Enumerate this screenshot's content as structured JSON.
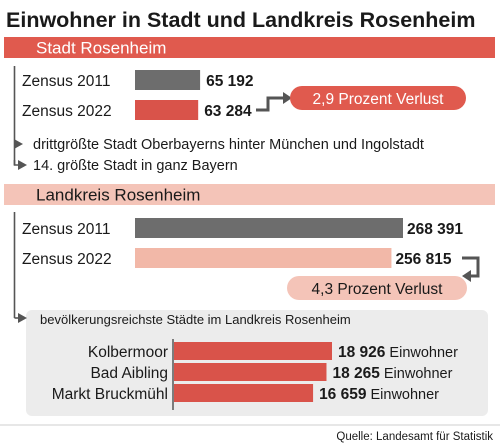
{
  "title": "Einwohner in Stadt und Landkreis Rosenheim",
  "source": "Quelle: Landesamt für Statistik",
  "colors": {
    "stadt_header": "#e05a4e",
    "landkreis_header": "#f4c4b8",
    "bar_2011": "#6d6d6d",
    "bar_2022_stadt": "#d9534a",
    "bar_2022_landkreis": "#f2b8a8",
    "bar_cities": "#d9534a",
    "arrow": "#555555",
    "box_bg": "#ececec"
  },
  "chart_data": [
    {
      "type": "bar",
      "section": "Stadt Rosenheim",
      "categories": [
        "Zensus 2011",
        "Zensus 2022"
      ],
      "values": [
        65192,
        63284
      ],
      "value_labels": [
        "65 192",
        "63 284"
      ],
      "annotation": "2,9 Prozent Verlust",
      "notes": [
        "drittgrößte Stadt Oberbayerns hinter München und Ingolstadt",
        "14. größte Stadt in ganz Bayern"
      ]
    },
    {
      "type": "bar",
      "section": "Landkreis Rosenheim",
      "categories": [
        "Zensus 2011",
        "Zensus 2022"
      ],
      "values": [
        268391,
        256815
      ],
      "value_labels": [
        "268 391",
        "256 815"
      ],
      "annotation": "4,3 Prozent Verlust"
    },
    {
      "type": "bar",
      "title": "bevölkerungsreichste Städte im Landkreis Rosenheim",
      "categories": [
        "Kolbermoor",
        "Bad Aibling",
        "Markt Bruckmühl"
      ],
      "values": [
        18926,
        18265,
        16659
      ],
      "value_labels": [
        "18 926",
        "18 265",
        "16 659"
      ],
      "unit": "Einwohner"
    }
  ]
}
